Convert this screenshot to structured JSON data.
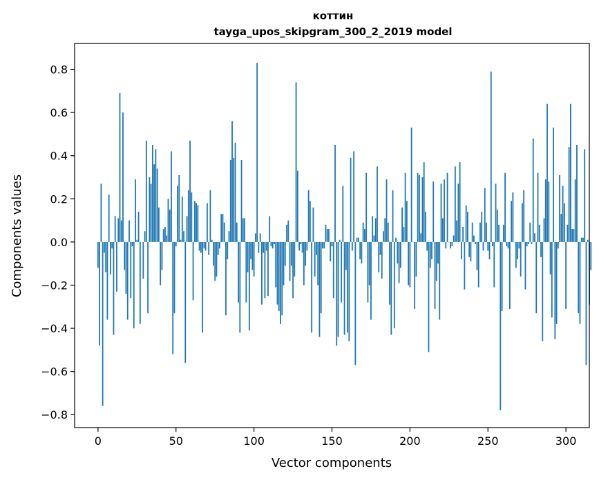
{
  "chart_data": {
    "type": "bar",
    "title_line1": "коттин",
    "title_line2": "tayga_upos_skipgram_300_2_2019 model",
    "xlabel": "Vector components",
    "ylabel": "Components values",
    "xlim": [
      -15,
      315
    ],
    "ylim": [
      -0.86,
      0.92
    ],
    "xticks": [
      0,
      50,
      100,
      150,
      200,
      250,
      300
    ],
    "xtick_labels": [
      "0",
      "50",
      "100",
      "150",
      "200",
      "250",
      "300"
    ],
    "yticks": [
      -0.8,
      -0.6,
      -0.4,
      -0.2,
      0.0,
      0.2,
      0.4,
      0.6,
      0.8
    ],
    "ytick_labels": [
      "−0.8",
      "−0.6",
      "−0.4",
      "−0.2",
      "0.0",
      "0.2",
      "0.4",
      "0.6",
      "0.8"
    ],
    "bar_color": "#1f77b4",
    "grid": false,
    "values": [
      -0.12,
      -0.48,
      0.27,
      -0.76,
      -0.05,
      -0.14,
      -0.36,
      0.22,
      -0.15,
      -0.03,
      -0.43,
      0.12,
      -0.23,
      0.11,
      0.69,
      0.1,
      0.6,
      -0.13,
      -0.24,
      -0.36,
      0.1,
      -0.26,
      -0.02,
      -0.4,
      0.29,
      0.01,
      0.14,
      -0.38,
      0.0,
      -0.17,
      0.05,
      0.47,
      -0.33,
      0.3,
      0.27,
      0.45,
      0.36,
      0.43,
      0.34,
      0.16,
      -0.2,
      -0.13,
      0.06,
      0.07,
      0.03,
      0.2,
      0.15,
      0.42,
      -0.52,
      -0.33,
      -0.02,
      0.26,
      0.31,
      0.01,
      0.21,
      0.05,
      -0.56,
      0.12,
      0.24,
      0.47,
      0.23,
      -0.27,
      0.19,
      0.18,
      0.17,
      -0.04,
      -0.05,
      -0.42,
      -0.03,
      -0.04,
      0.18,
      -0.06,
      0.24,
      0.01,
      -0.11,
      -0.18,
      -0.16,
      -0.06,
      -0.03,
      0.13,
      0.13,
      0.09,
      -0.34,
      -0.08,
      0.05,
      0.38,
      0.56,
      0.39,
      0.46,
      0.09,
      -0.28,
      -0.42,
      0.38,
      0.11,
      0.11,
      -0.28,
      -0.14,
      -0.41,
      -0.08,
      -0.13,
      -0.16,
      0.04,
      0.83,
      -0.05,
      0.04,
      -0.29,
      -0.05,
      -0.26,
      -0.04,
      -0.25,
      0.12,
      -0.02,
      -0.03,
      -0.01,
      -0.21,
      -0.29,
      -0.32,
      -0.38,
      -0.34,
      -0.2,
      -0.11,
      0.08,
      0.1,
      -0.18,
      -0.11,
      -0.26,
      -0.16,
      0.74,
      0.33,
      -0.04,
      -0.01,
      -0.05,
      -0.2,
      -0.11,
      -0.04,
      0.24,
      0.19,
      -0.42,
      0.16,
      -0.16,
      -0.06,
      -0.2,
      -0.44,
      -0.33,
      -0.03,
      -0.03,
      0.08,
      0.06,
      0.06,
      -0.09,
      -0.02,
      -0.26,
      0.45,
      -0.48,
      -0.44,
      0.01,
      -0.28,
      0.26,
      -0.43,
      -0.13,
      -0.42,
      -0.46,
      0.39,
      -0.04,
      0.42,
      -0.57,
      0.02,
      0.02,
      -0.08,
      -0.1,
      0.09,
      0.06,
      0.32,
      -0.28,
      -0.2,
      -0.36,
      0.12,
      0.03,
      0.11,
      0.35,
      -0.14,
      -0.06,
      -0.17,
      0.05,
      0.11,
      0.29,
      0.09,
      -0.29,
      -0.43,
      0.24,
      -0.4,
      0.02,
      -0.1,
      -0.19,
      -0.12,
      0.16,
      0.07,
      0.32,
      0.19,
      -0.2,
      -0.21,
      0.53,
      0.0,
      -0.31,
      -0.16,
      0.32,
      0.31,
      0.04,
      0.3,
      0.37,
      0.14,
      -0.04,
      -0.51,
      -0.12,
      -0.08,
      0.28,
      -0.31,
      -0.18,
      -0.1,
      -0.36,
      0.27,
      0.11,
      0.29,
      -0.03,
      0.32,
      0.0,
      -0.03,
      -0.02,
      0.03,
      0.35,
      0.1,
      0.27,
      0.37,
      -0.08,
      0.07,
      -0.22,
      0.17,
      0.14,
      -0.07,
      -0.09,
      0.09,
      0.03,
      -0.01,
      -0.13,
      -0.21,
      0.09,
      0.14,
      -0.04,
      0.25,
      0.09,
      -0.04,
      -0.08,
      0.79,
      -0.02,
      -0.21,
      0.27,
      0.15,
      0.08,
      -0.78,
      -0.32,
      0.08,
      0.32,
      -0.02,
      -0.03,
      -0.31,
      0.19,
      0.23,
      0.0,
      -0.12,
      -0.08,
      -0.03,
      -0.16,
      0.18,
      0.24,
      -0.22,
      -0.02,
      -0.01,
      0.09,
      -0.01,
      0.48,
      0.04,
      -0.33,
      0.32,
      0.08,
      -0.07,
      -0.46,
      0.11,
      0.29,
      0.64,
      0.28,
      -0.15,
      -0.35,
      0.53,
      -0.45,
      -0.38,
      -0.03,
      0.31,
      0.13,
      0.26,
      0.18,
      -0.31,
      0.08,
      0.44,
      0.64,
      0.06,
      0.06,
      0.29,
      0.45,
      -0.33,
      -0.38,
      0.02,
      0.02,
      0.43,
      -0.57,
      0.01,
      -0.29,
      -0.13
    ]
  }
}
